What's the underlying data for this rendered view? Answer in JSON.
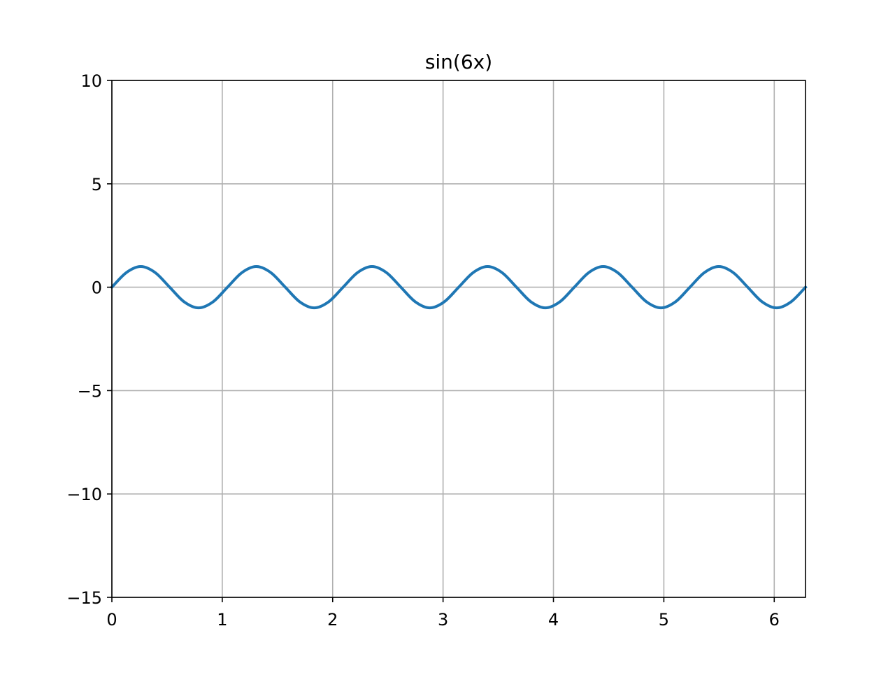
{
  "chart_data": {
    "type": "line",
    "title": "sin(6x)",
    "xlabel": "",
    "ylabel": "",
    "xlim": [
      0,
      6.283185
    ],
    "ylim": [
      -15,
      10
    ],
    "grid": true,
    "x_ticks": [
      0,
      1,
      2,
      3,
      4,
      5,
      6
    ],
    "x_tick_labels": [
      "0",
      "1",
      "2",
      "3",
      "4",
      "5",
      "6"
    ],
    "y_ticks": [
      -15,
      -10,
      -5,
      0,
      5,
      10
    ],
    "y_tick_labels": [
      "−15",
      "−10",
      "−5",
      "0",
      "5",
      "10"
    ],
    "series": [
      {
        "color": "#1f77b4",
        "x": [
          0,
          0.1309,
          0.2618,
          0.3927,
          0.5236,
          0.6545,
          0.7854,
          0.9163,
          1.0472,
          1.1781,
          1.309,
          1.4399,
          1.5708,
          1.7017,
          1.8326,
          1.9635,
          2.0944,
          2.2253,
          2.3562,
          2.4871,
          2.618,
          2.7489,
          2.8798,
          3.0107,
          3.1416,
          3.2725,
          3.4034,
          3.5343,
          3.6652,
          3.7961,
          3.927,
          4.0579,
          4.1888,
          4.3197,
          4.4506,
          4.5815,
          4.7124,
          4.8433,
          4.9742,
          5.1051,
          5.236,
          5.3669,
          5.4978,
          5.6287,
          5.7596,
          5.8905,
          6.0214,
          6.1523,
          6.2832
        ],
        "y": [
          0,
          0.7071,
          1,
          0.7071,
          0,
          -0.7071,
          -1,
          -0.7071,
          0,
          0.7071,
          1,
          0.7071,
          0,
          -0.7071,
          -1,
          -0.7071,
          0,
          0.7071,
          1,
          0.7071,
          0,
          -0.7071,
          -1,
          -0.7071,
          0,
          0.7071,
          1,
          0.7071,
          0,
          -0.7071,
          -1,
          -0.7071,
          0,
          0.7071,
          1,
          0.7071,
          0,
          -0.7071,
          -1,
          -0.7071,
          0,
          0.7071,
          1,
          0.7071,
          0,
          -0.7071,
          -1,
          -0.7071,
          0
        ]
      }
    ]
  }
}
